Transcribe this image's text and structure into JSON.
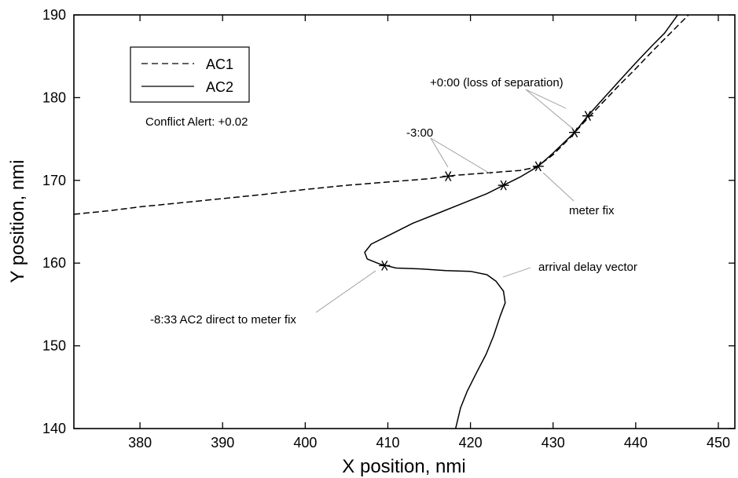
{
  "chart_data": {
    "type": "line",
    "xlabel": "X position, nmi",
    "ylabel": "Y position, nmi",
    "xlim": [
      372,
      452
    ],
    "ylim": [
      140,
      190
    ],
    "xticks": [
      380,
      390,
      400,
      410,
      420,
      430,
      440,
      450
    ],
    "yticks": [
      140,
      150,
      160,
      170,
      180,
      190
    ],
    "grid": false,
    "legend": {
      "placement": "top-left",
      "entries": [
        {
          "label": "AC1",
          "style": "dashed"
        },
        {
          "label": "AC2",
          "style": "solid"
        }
      ]
    },
    "series": [
      {
        "name": "AC1",
        "style": "dashed",
        "points": [
          [
            372,
            165.9
          ],
          [
            376,
            166.3
          ],
          [
            380,
            166.8
          ],
          [
            385,
            167.3
          ],
          [
            390,
            167.8
          ],
          [
            395,
            168.3
          ],
          [
            400,
            168.9
          ],
          [
            405,
            169.4
          ],
          [
            410,
            169.8
          ],
          [
            415,
            170.2
          ],
          [
            418,
            170.6
          ],
          [
            422,
            170.9
          ],
          [
            426,
            171.2
          ],
          [
            428,
            171.6
          ],
          [
            430,
            173.1
          ],
          [
            432,
            175.1
          ],
          [
            434,
            177.3
          ],
          [
            436,
            179.4
          ],
          [
            438,
            181.5
          ],
          [
            440,
            183.5
          ],
          [
            442,
            185.6
          ],
          [
            444,
            187.6
          ],
          [
            446,
            189.6
          ],
          [
            446.8,
            190.4
          ]
        ]
      },
      {
        "name": "AC2",
        "style": "solid",
        "points": [
          [
            418.2,
            140
          ],
          [
            418.8,
            142.5
          ],
          [
            419.6,
            144.5
          ],
          [
            420.7,
            146.7
          ],
          [
            421.9,
            149
          ],
          [
            422.8,
            151.2
          ],
          [
            423.6,
            153.6
          ],
          [
            424.2,
            155.2
          ],
          [
            424,
            156.6
          ],
          [
            423.1,
            157.8
          ],
          [
            422,
            158.6
          ],
          [
            420,
            159
          ],
          [
            417,
            159.1
          ],
          [
            414,
            159.3
          ],
          [
            411,
            159.4
          ],
          [
            409,
            159.9
          ],
          [
            407.5,
            160.5
          ],
          [
            407.2,
            161.3
          ],
          [
            408,
            162.3
          ],
          [
            410,
            163.3
          ],
          [
            413,
            164.8
          ],
          [
            416,
            166
          ],
          [
            419,
            167.2
          ],
          [
            422,
            168.4
          ],
          [
            424,
            169.4
          ],
          [
            426,
            170.4
          ],
          [
            428.2,
            171.7
          ],
          [
            430,
            173.3
          ],
          [
            432.6,
            175.8
          ],
          [
            434.2,
            177.8
          ],
          [
            436,
            179.8
          ],
          [
            438,
            182
          ],
          [
            440,
            184.2
          ],
          [
            442,
            186.3
          ],
          [
            443.5,
            187.8
          ],
          [
            445.3,
            190.3
          ]
        ]
      }
    ],
    "markers": [
      {
        "label": "-8:33 AC2 direct to meter fix",
        "x": 409.6,
        "y": 159.7
      },
      {
        "label": "-3:00 AC1",
        "x": 417.3,
        "y": 170.5
      },
      {
        "label": "-3:00 AC2",
        "x": 424.0,
        "y": 169.4
      },
      {
        "label": "meter fix",
        "x": 428.2,
        "y": 171.7
      },
      {
        "label": "+0:00 AC1",
        "x": 432.6,
        "y": 175.8
      },
      {
        "label": "+0:00 AC2",
        "x": 434.2,
        "y": 177.8
      }
    ],
    "annotations": [
      {
        "id": "conflict",
        "text": "Conflict Alert: +0.02"
      },
      {
        "id": "los",
        "text": "+0:00 (loss of separation)"
      },
      {
        "id": "minus3",
        "text": "-3:00"
      },
      {
        "id": "meterfix",
        "text": "meter fix"
      },
      {
        "id": "delay",
        "text": "arrival delay vector"
      },
      {
        "id": "direct",
        "text": "-8:33 AC2 direct to meter fix"
      }
    ]
  }
}
